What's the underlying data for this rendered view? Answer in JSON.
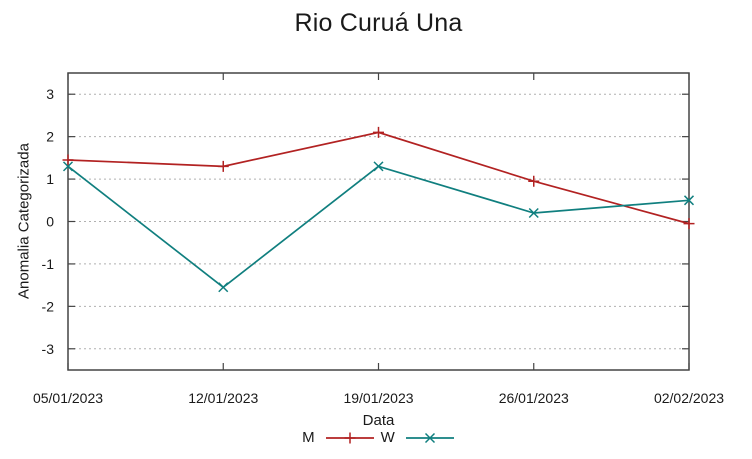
{
  "chart_data": {
    "type": "line",
    "title": "Rio Curuá Una",
    "xlabel": "Data",
    "ylabel": "Anomalia Categorizada",
    "categories": [
      "05/01/2023",
      "12/01/2023",
      "19/01/2023",
      "26/01/2023",
      "02/02/2023"
    ],
    "series": [
      {
        "name": "M",
        "color": "#b22222",
        "marker": "plus",
        "values": [
          1.45,
          1.3,
          2.1,
          0.95,
          -0.05
        ]
      },
      {
        "name": "W",
        "color": "#107f7f",
        "marker": "cross",
        "values": [
          1.3,
          -1.55,
          1.3,
          0.2,
          0.5
        ]
      }
    ],
    "ylim": [
      -3.5,
      3.5
    ],
    "yticks": [
      -3,
      -2,
      -1,
      0,
      1,
      2,
      3
    ],
    "grid": "dotted horizontal gridlines at each y tick",
    "legend_position": "bottom-center",
    "colors": {
      "background": "#ffffff",
      "grid": "#b0b0b0",
      "axis": "#444444",
      "text": "#1a1a1a"
    }
  }
}
